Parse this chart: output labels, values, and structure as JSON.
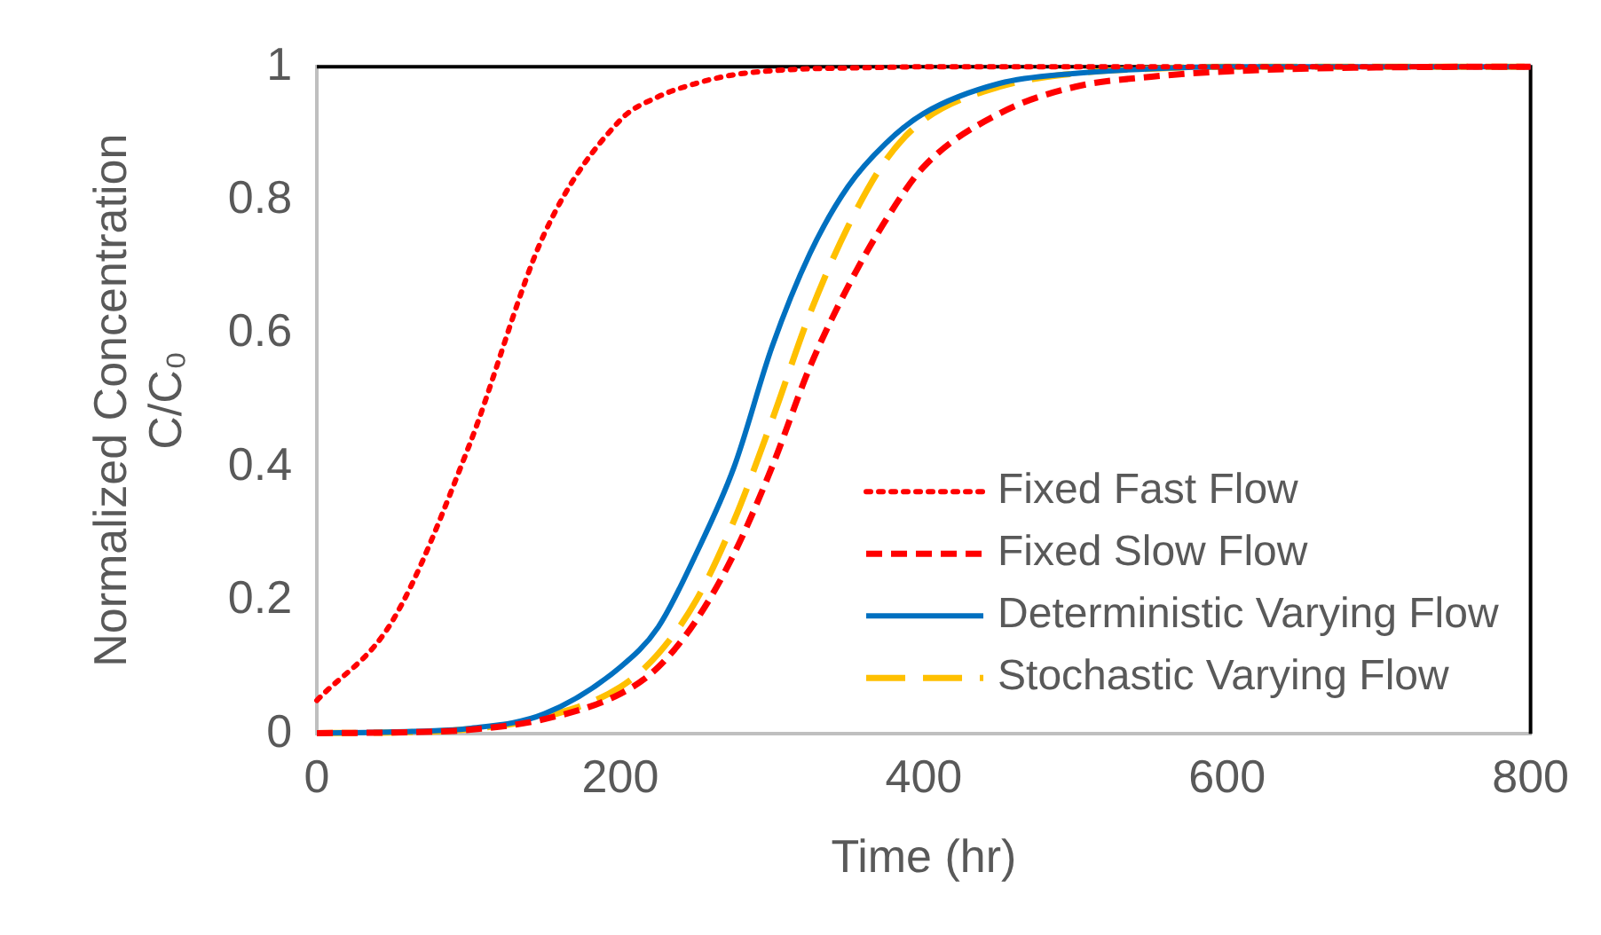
{
  "chart_data": {
    "type": "line",
    "xlabel": "Time (hr)",
    "ylabel": "Normalized Concentration\nC/C₀",
    "x": [
      0,
      50,
      100,
      150,
      200,
      225,
      250,
      275,
      300,
      325,
      350,
      375,
      400,
      450,
      500,
      550,
      600,
      700,
      800
    ],
    "series": [
      {
        "name": "Fixed Fast Flow",
        "color": "#ff0000",
        "line_style": "dotted",
        "values": [
          0.05,
          0.17,
          0.43,
          0.75,
          0.92,
          0.955,
          0.975,
          0.988,
          0.994,
          0.997,
          0.998,
          0.999,
          1,
          1,
          1,
          1,
          1,
          1,
          1
        ]
      },
      {
        "name": "Fixed Slow Flow",
        "color": "#ff0000",
        "line_style": "dashed",
        "values": [
          0.001,
          0.002,
          0.006,
          0.022,
          0.06,
          0.1,
          0.17,
          0.27,
          0.4,
          0.55,
          0.67,
          0.77,
          0.85,
          0.93,
          0.97,
          0.985,
          0.993,
          0.999,
          1
        ]
      },
      {
        "name": "Deterministic Varying Flow",
        "color": "#0070c0",
        "line_style": "solid",
        "values": [
          0.001,
          0.003,
          0.008,
          0.03,
          0.1,
          0.16,
          0.27,
          0.4,
          0.58,
          0.72,
          0.82,
          0.885,
          0.93,
          0.975,
          0.99,
          0.997,
          1,
          1,
          1
        ]
      },
      {
        "name": "Stochastic Varying Flow",
        "color": "#ffc000",
        "line_style": "longdash",
        "values": [
          0.001,
          0.002,
          0.007,
          0.025,
          0.07,
          0.12,
          0.2,
          0.32,
          0.47,
          0.63,
          0.76,
          0.86,
          0.92,
          0.97,
          0.99,
          0.997,
          1,
          1,
          1
        ]
      }
    ],
    "xlim": [
      0,
      800
    ],
    "xticks": [
      0,
      200,
      400,
      600,
      800
    ],
    "ylim": [
      0,
      1
    ],
    "yticks": [
      0,
      0.2,
      0.4,
      0.6,
      0.8,
      1
    ],
    "grid": false,
    "legend": "bottom right",
    "marker": "none"
  }
}
